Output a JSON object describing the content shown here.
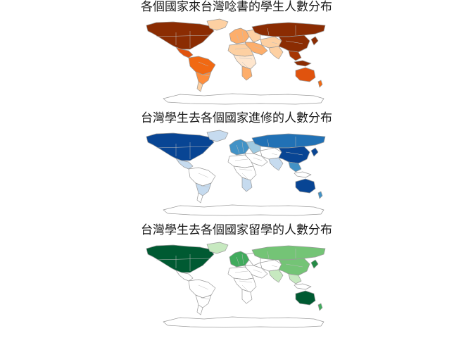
{
  "panels": [
    {
      "title": "各個國家來台灣唸書的學生人數分布",
      "colors": {
        "north_america": "#8b2c02",
        "greenland": "#fdd0a2",
        "central_america": "#e0530e",
        "south_america_north": "#f16913",
        "south_america_mid": "#fd8d3c",
        "south_america_south": "#fdd0a2",
        "europe_west": "#fdae6b",
        "europe_east": "#fdd0a2",
        "russia": "#8b2c02",
        "middle_east": "#fdae6b",
        "central_asia": "#fdd0a2",
        "india": "#fdd0a2",
        "china": "#8b2c02",
        "se_asia": "#a63603",
        "japan": "#8b2c02",
        "africa_north": "#fdd0a2",
        "africa_mid": "#fee6ce",
        "africa_south": "#fdae6b",
        "indonesia": "#8b2c02",
        "australia": "#e0530e",
        "new_zealand": "#f16913",
        "antarctica": "#ffffff"
      }
    },
    {
      "title": "台灣學生去各個國家進修的人數分布",
      "colors": {
        "north_america": "#084594",
        "greenland": "#c6dbef",
        "central_america": "#c6dbef",
        "south_america_north": "#ffffff",
        "south_america_mid": "#c6dbef",
        "south_america_south": "#ffffff",
        "europe_west": "#4292c6",
        "europe_east": "#9ecae1",
        "russia": "#2171b5",
        "middle_east": "#ffffff",
        "central_asia": "#ffffff",
        "india": "#c6dbef",
        "china": "#084594",
        "se_asia": "#4292c6",
        "japan": "#084594",
        "africa_north": "#ffffff",
        "africa_mid": "#ffffff",
        "africa_south": "#c6dbef",
        "indonesia": "#ffffff",
        "australia": "#084594",
        "new_zealand": "#4292c6",
        "antarctica": "#ffffff"
      }
    },
    {
      "title": "台灣學生去各個國家留學的人數分布",
      "colors": {
        "north_america": "#005a32",
        "greenland": "#c7e9c0",
        "central_america": "#ffffff",
        "south_america_north": "#ffffff",
        "south_america_mid": "#ffffff",
        "south_america_south": "#ffffff",
        "europe_west": "#41ab5d",
        "europe_east": "#ffffff",
        "russia": "#74c476",
        "middle_east": "#ffffff",
        "central_asia": "#ffffff",
        "india": "#c7e9c0",
        "china": "#74c476",
        "se_asia": "#c7e9c0",
        "japan": "#238b45",
        "africa_north": "#ffffff",
        "africa_mid": "#ffffff",
        "africa_south": "#ffffff",
        "indonesia": "#ffffff",
        "australia": "#005a32",
        "new_zealand": "#41ab5d",
        "antarctica": "#ffffff"
      }
    }
  ]
}
